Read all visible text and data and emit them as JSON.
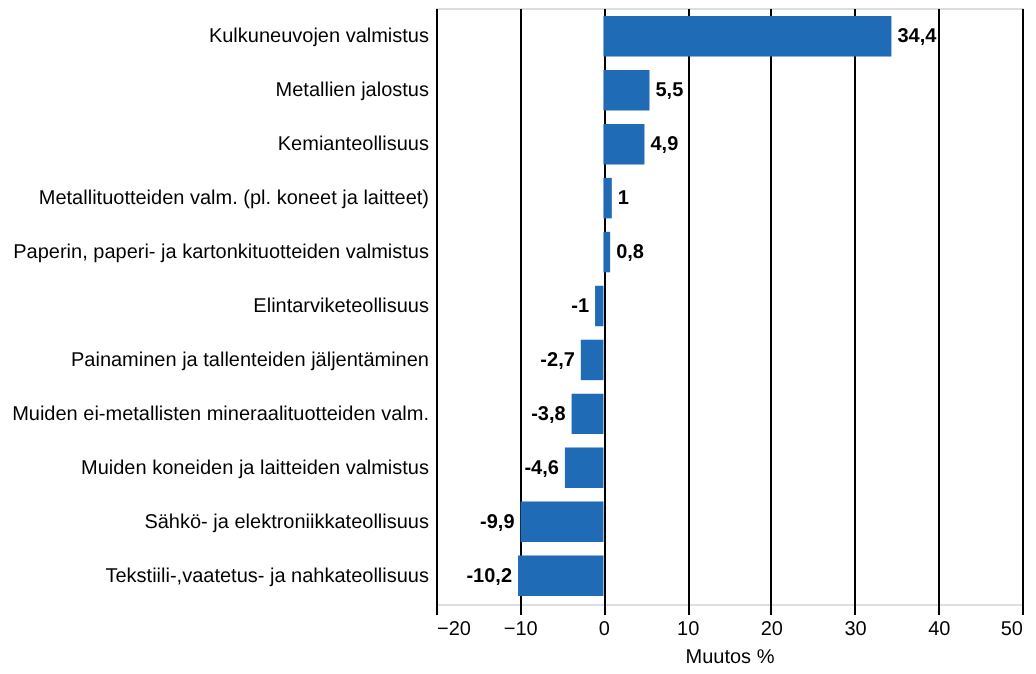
{
  "chart_data": {
    "type": "bar",
    "orientation": "horizontal",
    "xlabel": "Muutos %",
    "categories": [
      "Kulkuneuvojen valmistus",
      "Metallien jalostus",
      "Kemianteollisuus",
      "Metallituotteiden valm. (pl. koneet ja laitteet)",
      "Paperin, paperi- ja kartonkituotteiden valmistus",
      "Elintarviketeollisuus",
      "Painaminen ja tallenteiden jäljentäminen",
      "Muiden ei-metallisten mineraalituotteiden valm.",
      "Muiden koneiden ja laitteiden valmistus",
      "Sähkö- ja elektroniikkateollisuus",
      "Tekstiili-,vaatetus- ja nahkateollisuus"
    ],
    "values": [
      34.4,
      5.5,
      4.9,
      1,
      0.8,
      -1,
      -2.7,
      -3.8,
      -4.6,
      -9.9,
      -10.2
    ],
    "value_labels": [
      "34,4",
      "5,5",
      "4,9",
      "1",
      "0,8",
      "-1",
      "-2,7",
      "-3,8",
      "-4,6",
      "-9,9",
      "-10,2"
    ],
    "color": "#1f6bb5",
    "xlim": [
      -20,
      50
    ],
    "xticks": [
      -20,
      -10,
      0,
      10,
      20,
      30,
      40,
      50
    ],
    "grid": "x"
  }
}
